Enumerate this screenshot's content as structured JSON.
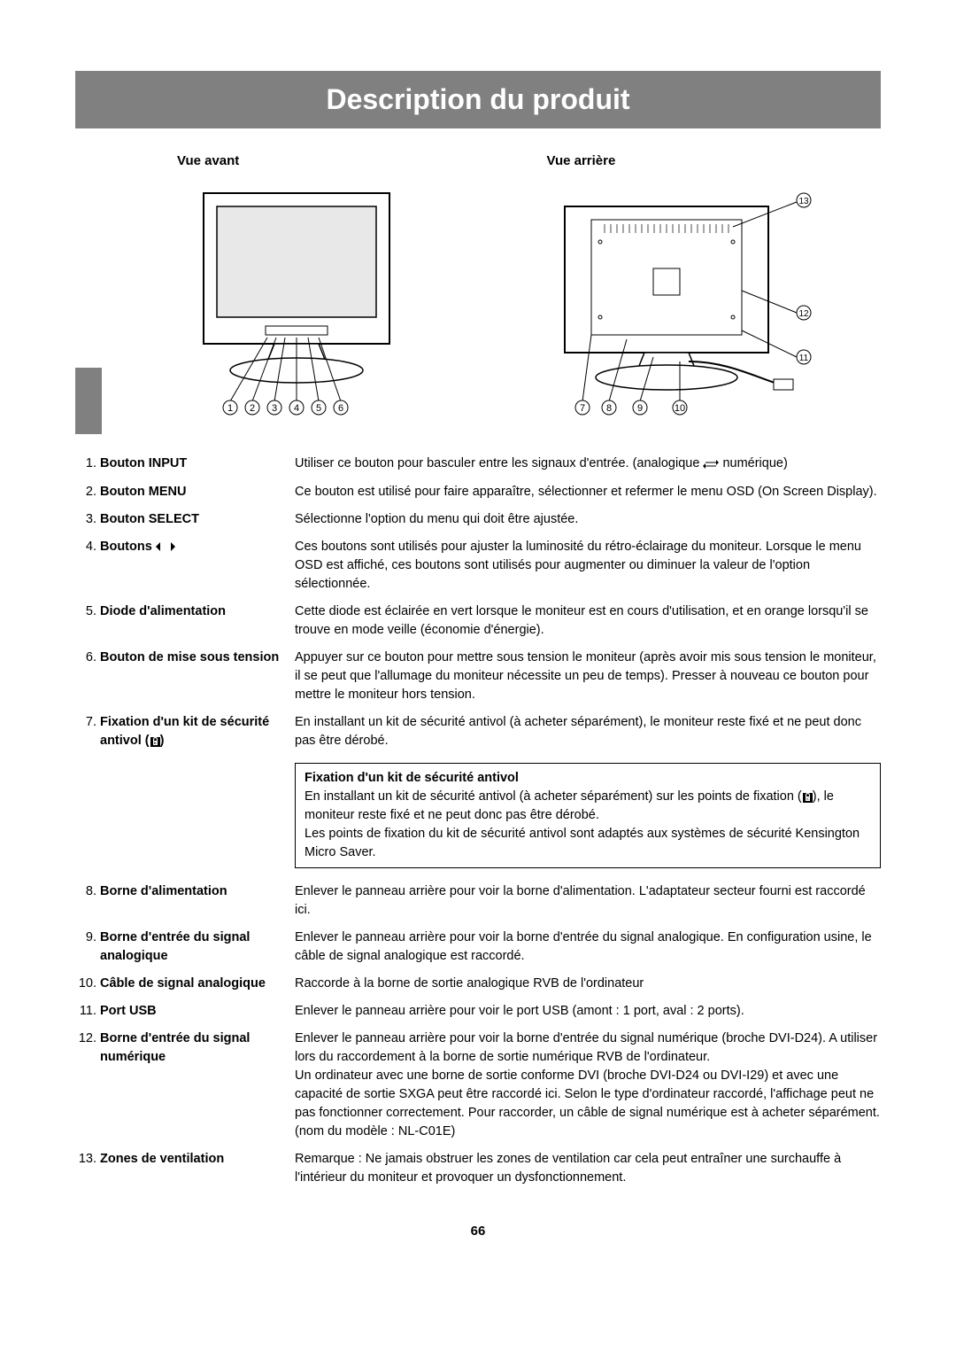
{
  "title": "Description du produit",
  "views": {
    "front_label": "Vue avant",
    "rear_label": "Vue arrière"
  },
  "colors": {
    "title_bg": "#808080",
    "title_fg": "#ffffff",
    "page_bg": "#ffffff",
    "text": "#000000",
    "diagram_stroke": "#000000",
    "diagram_fill": "#ffffff",
    "diagram_screen": "#e8e8e8"
  },
  "typography": {
    "title_fontsize_pt": 24,
    "body_fontsize_pt": 11,
    "label_fontsize_pt": 11,
    "font_family": "Arial"
  },
  "front_diagram": {
    "callouts": [
      "1",
      "2",
      "3",
      "4",
      "5",
      "6"
    ]
  },
  "rear_diagram": {
    "callouts_bottom": [
      "7",
      "8",
      "9",
      "10"
    ],
    "callouts_right": [
      "11",
      "12",
      "13"
    ]
  },
  "inset": {
    "title": "Fixation d'un kit de sécurité antivol",
    "body_pre": "En installant un kit de sécurité antivol (à acheter séparément) sur les points de fixation (",
    "body_post": "), le moniteur reste fixé et ne peut donc pas être dérobé.",
    "body2": "Les points de fixation du kit de sécurité antivol sont adaptés aux systèmes de sécurité Kensington Micro Saver."
  },
  "items": [
    {
      "num": "1.",
      "label": "Bouton INPUT",
      "desc_pre": "Utiliser ce bouton pour basculer entre les signaux d'entrée. (analogique ",
      "desc_post": " numérique)",
      "has_swap": true
    },
    {
      "num": "2.",
      "label": "Bouton MENU",
      "desc": "Ce bouton est utilisé pour faire apparaître, sélectionner et refermer le menu OSD (On Screen Display)."
    },
    {
      "num": "3.",
      "label": "Bouton SELECT",
      "desc": "Sélectionne l'option du menu qui doit être ajustée."
    },
    {
      "num": "4.",
      "label_pre": "Boutons ",
      "has_arrows": true,
      "desc": "Ces boutons sont utilisés pour ajuster la luminosité du rétro-éclairage du moniteur. Lorsque le menu OSD est affiché, ces boutons sont utilisés pour augmenter ou diminuer la valeur de l'option sélectionnée."
    },
    {
      "num": "5.",
      "label": "Diode d'alimentation",
      "desc": "Cette diode est éclairée en vert lorsque le moniteur est en cours d'utilisation, et en orange lorsqu'il se trouve en mode veille (économie d'énergie)."
    },
    {
      "num": "6.",
      "label": "Bouton de mise sous tension",
      "desc": "Appuyer sur ce bouton pour mettre sous tension le moniteur (après avoir mis sous tension le moniteur, il se peut que l'allumage du moniteur nécessite un peu de temps). Presser à nouveau ce bouton pour mettre le moniteur hors tension."
    },
    {
      "num": "7.",
      "label_pre": "Fixation d'un kit de sécurité antivol (",
      "label_post": ")",
      "has_lock": true,
      "desc": "En installant un kit de sécurité antivol (à acheter séparément), le moniteur reste fixé et ne peut donc pas être dérobé.",
      "inset_after": true
    },
    {
      "num": "8.",
      "label": "Borne d'alimentation",
      "desc": "Enlever le panneau arrière pour voir la borne d'alimentation. L'adaptateur secteur fourni est raccordé ici."
    },
    {
      "num": "9.",
      "label": "Borne d'entrée du signal analogique",
      "desc": "Enlever le panneau arrière pour voir la borne d'entrée du signal analogique. En configuration usine, le câble de signal analogique est raccordé."
    },
    {
      "num": "10.",
      "label": "Câble de signal analogique",
      "desc": "Raccorde à la borne de sortie analogique RVB de l'ordinateur"
    },
    {
      "num": "11.",
      "label": "Port USB",
      "desc": "Enlever le panneau arrière pour voir le port USB (amont : 1 port, aval : 2 ports)."
    },
    {
      "num": "12.",
      "label": "Borne d'entrée du signal numérique",
      "desc": "Enlever le panneau arrière pour voir la borne d'entrée du signal numérique (broche DVI-D24). A utiliser lors du raccordement à la borne de sortie numérique RVB de l'ordinateur.\nUn ordinateur avec une borne de sortie conforme DVI (broche DVI-D24 ou DVI-I29) et avec une capacité de sortie SXGA peut être raccordé ici. Selon le type d'ordinateur raccordé, l'affichage peut ne pas fonctionner correctement. Pour raccorder, un câble de signal numérique est à acheter séparément. (nom du modèle : NL-C01E)"
    },
    {
      "num": "13.",
      "label": "Zones de ventilation",
      "desc": "Remarque : Ne jamais obstruer les zones de ventilation car cela peut entraîner une surchauffe à l'intérieur du moniteur et provoquer un dysfonctionnement."
    }
  ],
  "page_number": "66"
}
